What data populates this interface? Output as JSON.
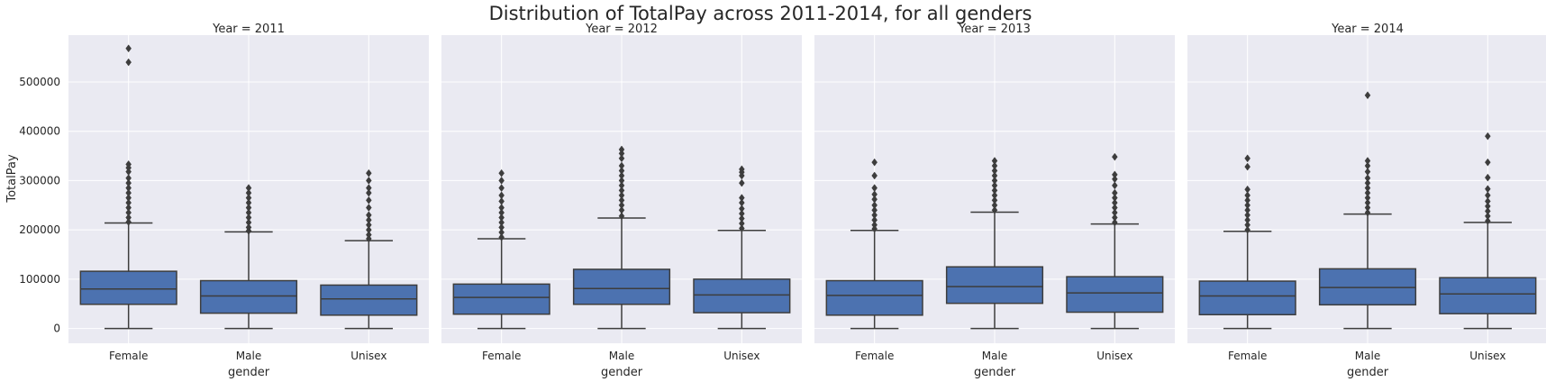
{
  "chart_data": {
    "type": "box",
    "title": "Distribution of TotalPay across 2011-2014, for all genders",
    "xlabel": "gender",
    "ylabel": "TotalPay",
    "ylim": [
      -30000,
      595000
    ],
    "yticks": [
      0,
      100000,
      200000,
      300000,
      400000,
      500000
    ],
    "ytick_labels": [
      "0",
      "100000",
      "200000",
      "300000",
      "400000",
      "500000"
    ],
    "categories": [
      "Female",
      "Male",
      "Unisex"
    ],
    "grid": true,
    "box_color": "#4c72b0",
    "background": "#eaeaf2",
    "panels": [
      {
        "title": "Year = 2011",
        "boxes": [
          {
            "category": "Female",
            "min": 0,
            "q1": 49000,
            "median": 80000,
            "q3": 116000,
            "max": 214000,
            "outliers": [
              216000,
              225000,
              235000,
              245000,
              255000,
              265000,
              275000,
              285000,
              295000,
              305000,
              318000,
              326000,
              333000,
              540000,
              568000
            ]
          },
          {
            "category": "Male",
            "min": 0,
            "q1": 31000,
            "median": 66000,
            "q3": 97000,
            "max": 196000,
            "outliers": [
              198000,
              205000,
              215000,
              225000,
              235000,
              245000,
              255000,
              265000,
              275000,
              285000
            ]
          },
          {
            "category": "Unisex",
            "min": 0,
            "q1": 27000,
            "median": 60000,
            "q3": 88000,
            "max": 178000,
            "outliers": [
              182000,
              190000,
              200000,
              210000,
              220000,
              230000,
              245000,
              260000,
              275000,
              285000,
              300000,
              315000
            ]
          }
        ]
      },
      {
        "title": "Year = 2012",
        "boxes": [
          {
            "category": "Female",
            "min": 0,
            "q1": 29000,
            "median": 63000,
            "q3": 90000,
            "max": 182000,
            "outliers": [
              185000,
              195000,
              205000,
              215000,
              225000,
              235000,
              245000,
              258000,
              270000,
              285000,
              300000,
              315000
            ]
          },
          {
            "category": "Male",
            "min": 0,
            "q1": 49000,
            "median": 81000,
            "q3": 120000,
            "max": 224000,
            "outliers": [
              228000,
              240000,
              250000,
              260000,
              270000,
              280000,
              290000,
              300000,
              310000,
              320000,
              330000,
              345000,
              355000,
              363000
            ]
          },
          {
            "category": "Unisex",
            "min": 0,
            "q1": 32000,
            "median": 68000,
            "q3": 100000,
            "max": 199000,
            "outliers": [
              203000,
              213000,
              223000,
              233000,
              243000,
              255000,
              265000,
              295000,
              310000,
              317000,
              323000
            ]
          }
        ]
      },
      {
        "title": "Year = 2013",
        "boxes": [
          {
            "category": "Female",
            "min": 0,
            "q1": 27000,
            "median": 67000,
            "q3": 97000,
            "max": 199000,
            "outliers": [
              202000,
              210000,
              220000,
              230000,
              240000,
              250000,
              262000,
              272000,
              285000,
              310000,
              337000
            ]
          },
          {
            "category": "Male",
            "min": 0,
            "q1": 51000,
            "median": 85000,
            "q3": 125000,
            "max": 236000,
            "outliers": [
              240000,
              250000,
              260000,
              270000,
              280000,
              290000,
              300000,
              310000,
              320000,
              330000,
              340000
            ]
          },
          {
            "category": "Unisex",
            "min": 0,
            "q1": 33000,
            "median": 72000,
            "q3": 105000,
            "max": 212000,
            "outliers": [
              215000,
              225000,
              235000,
              245000,
              255000,
              265000,
              275000,
              290000,
              303000,
              312000,
              348000
            ]
          }
        ]
      },
      {
        "title": "Year = 2014",
        "boxes": [
          {
            "category": "Female",
            "min": 0,
            "q1": 28000,
            "median": 66000,
            "q3": 96000,
            "max": 197000,
            "outliers": [
              200000,
              210000,
              220000,
              230000,
              240000,
              250000,
              260000,
              270000,
              282000,
              328000,
              345000
            ]
          },
          {
            "category": "Male",
            "min": 0,
            "q1": 48000,
            "median": 83000,
            "q3": 121000,
            "max": 232000,
            "outliers": [
              235000,
              245000,
              255000,
              265000,
              275000,
              285000,
              295000,
              305000,
              318000,
              330000,
              340000,
              473000
            ]
          },
          {
            "category": "Unisex",
            "min": 0,
            "q1": 30000,
            "median": 70000,
            "q3": 103000,
            "max": 215000,
            "outliers": [
              218000,
              228000,
              238000,
              248000,
              258000,
              270000,
              283000,
              306000,
              337000,
              390000
            ]
          }
        ]
      }
    ]
  }
}
